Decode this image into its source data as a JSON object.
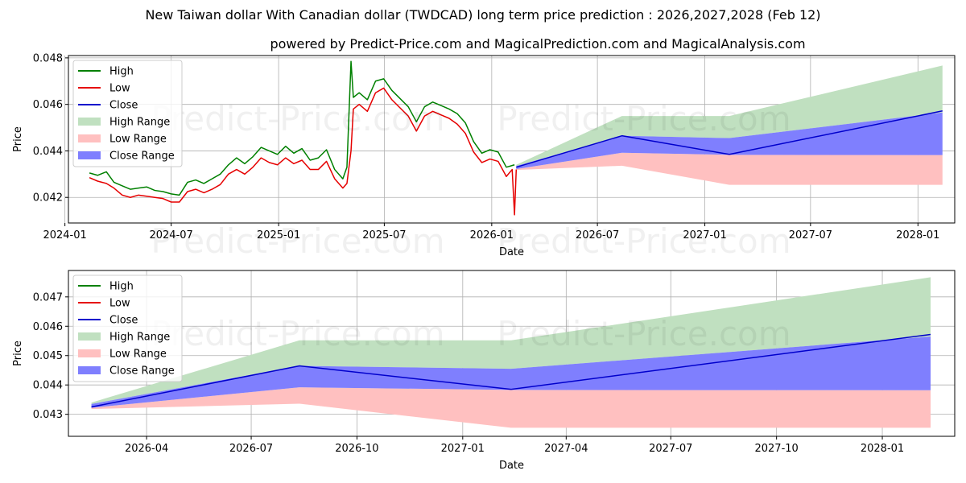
{
  "title": "New Taiwan dollar With Canadian dollar (TWDCAD) long term price prediction : 2026,2027,2028 (Feb 12)",
  "subtitle": "powered by Predict-Price.com and MagicalPrediction.com and MagicalAnalysis.com",
  "watermark": "Predict-Price.com",
  "colors": {
    "high": "#008000",
    "low": "#e60000",
    "close": "#0000cc",
    "high_range": "#c0e0c0",
    "low_range": "#ffc0c0",
    "close_range": "#7f7ffe",
    "grid": "#b0b0b0"
  },
  "chart_data": [
    {
      "type": "line",
      "name": "full-history",
      "xlabel": "Date",
      "ylabel": "Price",
      "ylim": [
        0.0409,
        0.0481
      ],
      "xlim": [
        "2024-01-07",
        "2028-03-04"
      ],
      "x_ticks": [
        "2024-01",
        "2024-07",
        "2025-01",
        "2025-07",
        "2026-01",
        "2026-07",
        "2027-01",
        "2027-07",
        "2028-01"
      ],
      "y_ticks": [
        0.042,
        0.044,
        0.046,
        0.048
      ],
      "y_tick_labels": [
        "0.042",
        "0.044",
        "0.046",
        "0.048"
      ],
      "legend": [
        {
          "label": "High",
          "kind": "line",
          "color": "#008000"
        },
        {
          "label": "Low",
          "kind": "line",
          "color": "#e60000"
        },
        {
          "label": "Close",
          "kind": "line",
          "color": "#0000cc"
        },
        {
          "label": "High Range",
          "kind": "patch",
          "color": "#c0e0c0"
        },
        {
          "label": "Low Range",
          "kind": "patch",
          "color": "#ffc0c0"
        },
        {
          "label": "Close Range",
          "kind": "patch",
          "color": "#7f7ffe"
        }
      ],
      "history_high": [
        [
          "2024-02-12",
          0.04305
        ],
        [
          "2024-02-26",
          0.04295
        ],
        [
          "2024-03-12",
          0.0431
        ],
        [
          "2024-03-25",
          0.04265
        ],
        [
          "2024-04-08",
          0.0425
        ],
        [
          "2024-04-22",
          0.04235
        ],
        [
          "2024-05-06",
          0.0424
        ],
        [
          "2024-05-20",
          0.04245
        ],
        [
          "2024-06-03",
          0.0423
        ],
        [
          "2024-06-17",
          0.04225
        ],
        [
          "2024-07-01",
          0.04215
        ],
        [
          "2024-07-15",
          0.0421
        ],
        [
          "2024-07-29",
          0.04265
        ],
        [
          "2024-08-12",
          0.04275
        ],
        [
          "2024-08-26",
          0.0426
        ],
        [
          "2024-09-09",
          0.0428
        ],
        [
          "2024-09-23",
          0.043
        ],
        [
          "2024-10-07",
          0.0434
        ],
        [
          "2024-10-21",
          0.0437
        ],
        [
          "2024-11-04",
          0.04345
        ],
        [
          "2024-11-18",
          0.04375
        ],
        [
          "2024-12-02",
          0.04415
        ],
        [
          "2024-12-16",
          0.044
        ],
        [
          "2024-12-30",
          0.04385
        ],
        [
          "2025-01-13",
          0.0442
        ],
        [
          "2025-01-27",
          0.0439
        ],
        [
          "2025-02-10",
          0.0441
        ],
        [
          "2025-02-24",
          0.0436
        ],
        [
          "2025-03-10",
          0.0437
        ],
        [
          "2025-03-24",
          0.04405
        ],
        [
          "2025-04-07",
          0.0432
        ],
        [
          "2025-04-21",
          0.0428
        ],
        [
          "2025-04-28",
          0.0433
        ],
        [
          "2025-05-05",
          0.04785
        ],
        [
          "2025-05-09",
          0.0463
        ],
        [
          "2025-05-19",
          0.0465
        ],
        [
          "2025-06-02",
          0.0462
        ],
        [
          "2025-06-16",
          0.047
        ],
        [
          "2025-06-30",
          0.0471
        ],
        [
          "2025-07-14",
          0.0466
        ],
        [
          "2025-07-28",
          0.04625
        ],
        [
          "2025-08-11",
          0.0459
        ],
        [
          "2025-08-25",
          0.04525
        ],
        [
          "2025-09-08",
          0.0459
        ],
        [
          "2025-09-22",
          0.0461
        ],
        [
          "2025-10-06",
          0.04595
        ],
        [
          "2025-10-20",
          0.0458
        ],
        [
          "2025-11-03",
          0.0456
        ],
        [
          "2025-11-17",
          0.0452
        ],
        [
          "2025-12-01",
          0.0444
        ],
        [
          "2025-12-15",
          0.0439
        ],
        [
          "2025-12-29",
          0.04405
        ],
        [
          "2026-01-12",
          0.04395
        ],
        [
          "2026-01-26",
          0.0433
        ],
        [
          "2026-02-09",
          0.0434
        ]
      ],
      "history_low": [
        [
          "2024-02-12",
          0.04285
        ],
        [
          "2024-02-26",
          0.0427
        ],
        [
          "2024-03-12",
          0.0426
        ],
        [
          "2024-03-25",
          0.0424
        ],
        [
          "2024-04-08",
          0.0421
        ],
        [
          "2024-04-22",
          0.042
        ],
        [
          "2024-05-06",
          0.0421
        ],
        [
          "2024-05-20",
          0.04205
        ],
        [
          "2024-06-03",
          0.042
        ],
        [
          "2024-06-17",
          0.04195
        ],
        [
          "2024-07-01",
          0.0418
        ],
        [
          "2024-07-15",
          0.0418
        ],
        [
          "2024-07-29",
          0.04225
        ],
        [
          "2024-08-12",
          0.04235
        ],
        [
          "2024-08-26",
          0.0422
        ],
        [
          "2024-09-09",
          0.04235
        ],
        [
          "2024-09-23",
          0.04255
        ],
        [
          "2024-10-07",
          0.043
        ],
        [
          "2024-10-21",
          0.0432
        ],
        [
          "2024-11-04",
          0.043
        ],
        [
          "2024-11-18",
          0.0433
        ],
        [
          "2024-12-02",
          0.0437
        ],
        [
          "2024-12-16",
          0.0435
        ],
        [
          "2024-12-30",
          0.0434
        ],
        [
          "2025-01-13",
          0.0437
        ],
        [
          "2025-01-27",
          0.04345
        ],
        [
          "2025-02-10",
          0.0436
        ],
        [
          "2025-02-24",
          0.0432
        ],
        [
          "2025-03-10",
          0.0432
        ],
        [
          "2025-03-24",
          0.04355
        ],
        [
          "2025-04-07",
          0.0428
        ],
        [
          "2025-04-21",
          0.0424
        ],
        [
          "2025-04-28",
          0.0426
        ],
        [
          "2025-05-05",
          0.044
        ],
        [
          "2025-05-09",
          0.0458
        ],
        [
          "2025-05-19",
          0.046
        ],
        [
          "2025-06-02",
          0.0457
        ],
        [
          "2025-06-16",
          0.0465
        ],
        [
          "2025-06-30",
          0.0467
        ],
        [
          "2025-07-14",
          0.0462
        ],
        [
          "2025-07-28",
          0.04585
        ],
        [
          "2025-08-11",
          0.0455
        ],
        [
          "2025-08-25",
          0.04485
        ],
        [
          "2025-09-08",
          0.0455
        ],
        [
          "2025-09-22",
          0.0457
        ],
        [
          "2025-10-06",
          0.04555
        ],
        [
          "2025-10-20",
          0.0454
        ],
        [
          "2025-11-03",
          0.04515
        ],
        [
          "2025-11-17",
          0.04475
        ],
        [
          "2025-12-01",
          0.04395
        ],
        [
          "2025-12-15",
          0.0435
        ],
        [
          "2025-12-29",
          0.04365
        ],
        [
          "2026-01-12",
          0.04355
        ],
        [
          "2026-01-26",
          0.0429
        ],
        [
          "2026-02-05",
          0.0432
        ],
        [
          "2026-02-09",
          0.04125
        ],
        [
          "2026-02-12",
          0.0432
        ]
      ],
      "forecast": {
        "dates": [
          "2026-02-12",
          "2026-08-12",
          "2027-02-12",
          "2028-02-12"
        ],
        "close": [
          0.0433,
          0.04465,
          0.04385,
          0.04572
        ],
        "high_range_top": [
          0.0434,
          0.0455,
          0.0455,
          0.04767
        ],
        "close_range_top": [
          0.04335,
          0.04465,
          0.04455,
          0.04565
        ],
        "close_range_bottom": [
          0.04322,
          0.04392,
          0.04383,
          0.04382
        ],
        "low_range_bottom": [
          0.04318,
          0.04336,
          0.04254,
          0.04254
        ]
      }
    },
    {
      "type": "line",
      "name": "forecast-zoom",
      "xlabel": "Date",
      "ylabel": "Price",
      "ylim": [
        0.04225,
        0.0479
      ],
      "xlim": [
        "2026-01-23",
        "2028-03-04"
      ],
      "x_ticks": [
        "2026-04",
        "2026-07",
        "2026-10",
        "2027-01",
        "2027-04",
        "2027-07",
        "2027-10",
        "2028-01"
      ],
      "y_ticks": [
        0.043,
        0.044,
        0.045,
        0.046,
        0.047
      ],
      "y_tick_labels": [
        "0.043",
        "0.044",
        "0.045",
        "0.046",
        "0.047"
      ],
      "legend": [
        {
          "label": "High",
          "kind": "line",
          "color": "#008000"
        },
        {
          "label": "Low",
          "kind": "line",
          "color": "#e60000"
        },
        {
          "label": "Close",
          "kind": "line",
          "color": "#0000cc"
        },
        {
          "label": "High Range",
          "kind": "patch",
          "color": "#c0e0c0"
        },
        {
          "label": "Low Range",
          "kind": "patch",
          "color": "#ffc0c0"
        },
        {
          "label": "Close Range",
          "kind": "patch",
          "color": "#7f7ffe"
        }
      ],
      "forecast": {
        "dates": [
          "2026-02-12",
          "2026-08-12",
          "2027-02-12",
          "2028-02-12"
        ],
        "close": [
          0.04325,
          0.04465,
          0.04385,
          0.04572
        ],
        "high_range_top": [
          0.0434,
          0.04552,
          0.04552,
          0.04767
        ],
        "close_range_top": [
          0.04335,
          0.04465,
          0.04455,
          0.04565
        ],
        "close_range_bottom": [
          0.04322,
          0.04392,
          0.04383,
          0.04382
        ],
        "low_range_bottom": [
          0.04318,
          0.04336,
          0.04254,
          0.04254
        ]
      }
    }
  ]
}
